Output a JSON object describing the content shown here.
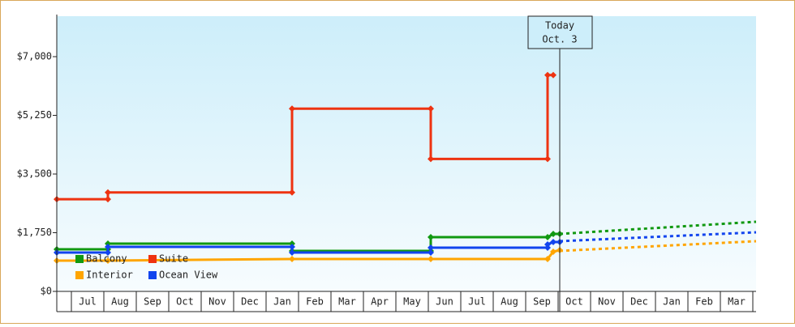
{
  "chart_data": {
    "type": "line",
    "annotation": {
      "title": "Today",
      "date": "Oct. 3",
      "x": 15.05
    },
    "xlim": [
      -0.45,
      21.1
    ],
    "xticks": [
      {
        "value": 0.5,
        "label": "Jul"
      },
      {
        "value": 1.5,
        "label": "Aug"
      },
      {
        "value": 2.5,
        "label": "Sep"
      },
      {
        "value": 3.5,
        "label": "Oct"
      },
      {
        "value": 4.5,
        "label": "Nov"
      },
      {
        "value": 5.5,
        "label": "Dec"
      },
      {
        "value": 6.5,
        "label": "Jan"
      },
      {
        "value": 7.5,
        "label": "Feb"
      },
      {
        "value": 8.5,
        "label": "Mar"
      },
      {
        "value": 9.5,
        "label": "Apr"
      },
      {
        "value": 10.5,
        "label": "May"
      },
      {
        "value": 11.5,
        "label": "Jun"
      },
      {
        "value": 12.5,
        "label": "Jul"
      },
      {
        "value": 13.5,
        "label": "Aug"
      },
      {
        "value": 14.5,
        "label": "Sep"
      },
      {
        "value": 15.5,
        "label": "Oct"
      },
      {
        "value": 16.5,
        "label": "Nov"
      },
      {
        "value": 17.5,
        "label": "Dec"
      },
      {
        "value": 18.5,
        "label": "Jan"
      },
      {
        "value": 19.5,
        "label": "Feb"
      },
      {
        "value": 20.5,
        "label": "Mar"
      }
    ],
    "ylim": [
      0,
      8207
    ],
    "yticks": [
      {
        "value": 0,
        "label": "$0"
      },
      {
        "value": 1750,
        "label": "$1,750"
      },
      {
        "value": 3500,
        "label": "$3,500"
      },
      {
        "value": 5250,
        "label": "$5,250"
      },
      {
        "value": 7000,
        "label": "$7,000"
      }
    ],
    "series": [
      {
        "name": "Balcony",
        "color": "#119911",
        "x": [
          -0.45,
          1.125,
          1.125,
          6.8,
          6.8,
          11.075,
          11.075,
          14.675,
          14.85,
          15.05
        ],
        "values": [
          1255,
          1255,
          1424,
          1424,
          1207,
          1207,
          1617,
          1617,
          1714,
          1714
        ],
        "forecast_x": [
          15.05,
          21.1
        ],
        "forecast_values": [
          1714,
          2076
        ]
      },
      {
        "name": "Suite",
        "color": "#ee3311",
        "x": [
          -0.45,
          1.125,
          1.125,
          6.8,
          6.8,
          11.075,
          11.075,
          14.675,
          14.675,
          14.85
        ],
        "values": [
          2750,
          2750,
          2950,
          2950,
          5450,
          5450,
          3950,
          3950,
          6450,
          6450
        ]
      },
      {
        "name": "Interior",
        "color": "#ffa500",
        "x": [
          -0.45,
          1.125,
          6.8,
          11.075,
          14.675,
          14.85,
          15.05
        ],
        "values": [
          917,
          917,
          966,
          966,
          966,
          1183,
          1231
        ],
        "forecast_x": [
          15.05,
          21.1
        ],
        "forecast_values": [
          1207,
          1497
        ]
      },
      {
        "name": "Ocean View",
        "color": "#1144ee",
        "x": [
          -0.45,
          1.125,
          1.125,
          6.8,
          6.8,
          11.075,
          11.075,
          14.675,
          14.675,
          14.85,
          15.05
        ],
        "values": [
          1159,
          1159,
          1328,
          1328,
          1159,
          1159,
          1303,
          1303,
          1400,
          1472,
          1472
        ],
        "forecast_x": [
          15.05,
          21.1
        ],
        "forecast_values": [
          1497,
          1762
        ]
      }
    ]
  }
}
